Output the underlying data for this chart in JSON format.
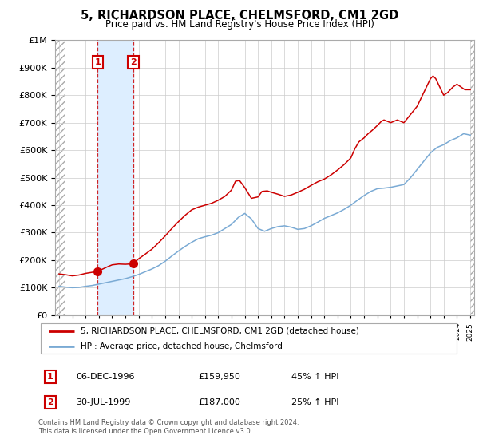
{
  "title": "5, RICHARDSON PLACE, CHELMSFORD, CM1 2GD",
  "subtitle": "Price paid vs. HM Land Registry's House Price Index (HPI)",
  "legend_line1": "5, RICHARDSON PLACE, CHELMSFORD, CM1 2GD (detached house)",
  "legend_line2": "HPI: Average price, detached house, Chelmsford",
  "transaction1_date": "06-DEC-1996",
  "transaction1_price": 159950,
  "transaction1_label": "45% ↑ HPI",
  "transaction2_date": "30-JUL-1999",
  "transaction2_price": 187000,
  "transaction2_label": "25% ↑ HPI",
  "footnote1": "Contains HM Land Registry data © Crown copyright and database right 2024.",
  "footnote2": "This data is licensed under the Open Government Licence v3.0.",
  "hpi_color": "#7aaad4",
  "price_color": "#cc0000",
  "shade_color": "#ddeeff",
  "ylim": [
    0,
    1000000
  ],
  "yticks": [
    0,
    100000,
    200000,
    300000,
    400000,
    500000,
    600000,
    700000,
    800000,
    900000,
    1000000
  ],
  "xlim_start": 1993.7,
  "xlim_end": 2025.3,
  "t1_x": 1996.92,
  "t2_x": 1999.58,
  "hpi_years": [
    1994.0,
    1994.5,
    1995.0,
    1995.5,
    1996.0,
    1996.5,
    1997.0,
    1997.5,
    1998.0,
    1998.5,
    1999.0,
    1999.5,
    2000.0,
    2000.5,
    2001.0,
    2001.5,
    2002.0,
    2002.5,
    2003.0,
    2003.5,
    2004.0,
    2004.5,
    2005.0,
    2005.5,
    2006.0,
    2006.5,
    2007.0,
    2007.5,
    2008.0,
    2008.5,
    2009.0,
    2009.5,
    2010.0,
    2010.5,
    2011.0,
    2011.5,
    2012.0,
    2012.5,
    2013.0,
    2013.5,
    2014.0,
    2014.5,
    2015.0,
    2015.5,
    2016.0,
    2016.5,
    2017.0,
    2017.5,
    2018.0,
    2018.5,
    2019.0,
    2019.5,
    2020.0,
    2020.5,
    2021.0,
    2021.5,
    2022.0,
    2022.5,
    2023.0,
    2023.5,
    2024.0,
    2024.5,
    2025.0
  ],
  "hpi_vals": [
    105000,
    102000,
    100000,
    101000,
    105000,
    108000,
    113000,
    118000,
    123000,
    128000,
    133000,
    140000,
    148000,
    158000,
    168000,
    180000,
    196000,
    215000,
    233000,
    250000,
    265000,
    278000,
    285000,
    291000,
    300000,
    315000,
    330000,
    355000,
    370000,
    350000,
    315000,
    305000,
    315000,
    322000,
    325000,
    320000,
    312000,
    315000,
    325000,
    338000,
    352000,
    362000,
    372000,
    385000,
    400000,
    418000,
    435000,
    450000,
    460000,
    462000,
    465000,
    470000,
    475000,
    500000,
    530000,
    560000,
    590000,
    610000,
    620000,
    635000,
    645000,
    660000,
    655000
  ],
  "red_years": [
    1994.0,
    1994.5,
    1995.0,
    1995.5,
    1996.0,
    1996.5,
    1996.92,
    1997.3,
    1997.7,
    1998.0,
    1998.5,
    1999.0,
    1999.58,
    2000.0,
    2000.5,
    2001.0,
    2001.5,
    2002.0,
    2002.5,
    2003.0,
    2003.5,
    2004.0,
    2004.5,
    2005.0,
    2005.5,
    2006.0,
    2006.5,
    2007.0,
    2007.3,
    2007.6,
    2008.0,
    2008.5,
    2009.0,
    2009.3,
    2009.7,
    2010.0,
    2010.5,
    2011.0,
    2011.5,
    2012.0,
    2012.5,
    2013.0,
    2013.5,
    2014.0,
    2014.5,
    2015.0,
    2015.5,
    2016.0,
    2016.3,
    2016.6,
    2017.0,
    2017.3,
    2017.6,
    2018.0,
    2018.3,
    2018.5,
    2019.0,
    2019.5,
    2020.0,
    2020.5,
    2021.0,
    2021.3,
    2021.6,
    2022.0,
    2022.2,
    2022.4,
    2022.7,
    2023.0,
    2023.3,
    2023.5,
    2023.7,
    2024.0,
    2024.3,
    2024.6,
    2025.0
  ],
  "red_vals": [
    150000,
    147000,
    143000,
    146000,
    152000,
    156000,
    159950,
    168000,
    177000,
    183000,
    186000,
    185000,
    187000,
    205000,
    222000,
    240000,
    263000,
    288000,
    315000,
    340000,
    363000,
    383000,
    393000,
    400000,
    407000,
    418000,
    432000,
    455000,
    487000,
    490000,
    464000,
    425000,
    430000,
    450000,
    452000,
    447000,
    440000,
    432000,
    437000,
    447000,
    458000,
    472000,
    485000,
    495000,
    510000,
    528000,
    548000,
    572000,
    605000,
    630000,
    645000,
    660000,
    672000,
    690000,
    705000,
    710000,
    700000,
    710000,
    700000,
    730000,
    760000,
    790000,
    820000,
    860000,
    870000,
    860000,
    830000,
    800000,
    810000,
    820000,
    830000,
    840000,
    830000,
    820000,
    820000
  ]
}
